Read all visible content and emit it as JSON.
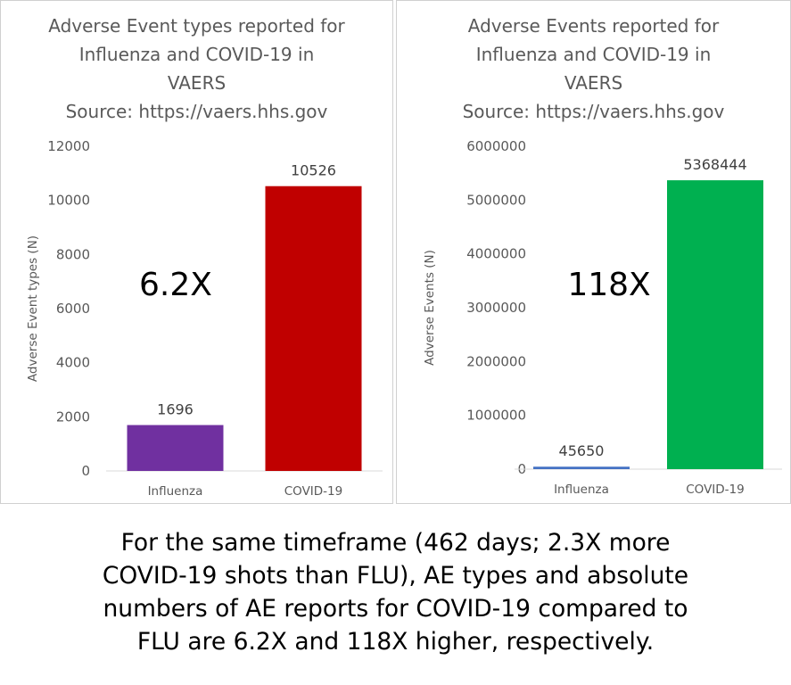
{
  "chart_data": [
    {
      "type": "bar",
      "title_lines": [
        "Adverse Event types reported for",
        "Influenza and COVID-19 in",
        "VAERS",
        "Source: https://vaers.hhs.gov"
      ],
      "categories": [
        "Influenza",
        "COVID-19"
      ],
      "values": [
        1696,
        10526
      ],
      "value_labels": [
        "1696",
        "10526"
      ],
      "colors": [
        "#7030a0",
        "#c00000"
      ],
      "xlabel": "",
      "ylabel": "Adverse Event types (N)",
      "ylim": [
        0,
        12000
      ],
      "yticks": [
        0,
        2000,
        4000,
        6000,
        8000,
        10000,
        12000
      ],
      "annotation": "6.2X",
      "grid": false
    },
    {
      "type": "bar",
      "title_lines": [
        "Adverse Events reported for",
        "Influenza and COVID-19 in",
        "VAERS",
        "Source: https://vaers.hhs.gov"
      ],
      "categories": [
        "Influenza",
        "COVID-19"
      ],
      "values": [
        45650,
        5368444
      ],
      "value_labels": [
        "45650",
        "5368444"
      ],
      "colors": [
        "#4472c4",
        "#00b050"
      ],
      "xlabel": "",
      "ylabel": "Adverse Events (N)",
      "ylim": [
        0,
        6000000
      ],
      "yticks": [
        0,
        1000000,
        2000000,
        3000000,
        4000000,
        5000000,
        6000000
      ],
      "annotation": "118X",
      "grid": false
    }
  ],
  "caption": {
    "lines": [
      "For the same timeframe (462 days; 2.3X more",
      "COVID-19 shots than FLU), AE types and absolute",
      "numbers of AE reports for COVID-19 compared to",
      "FLU are 6.2X and 118X higher, respectively."
    ]
  }
}
